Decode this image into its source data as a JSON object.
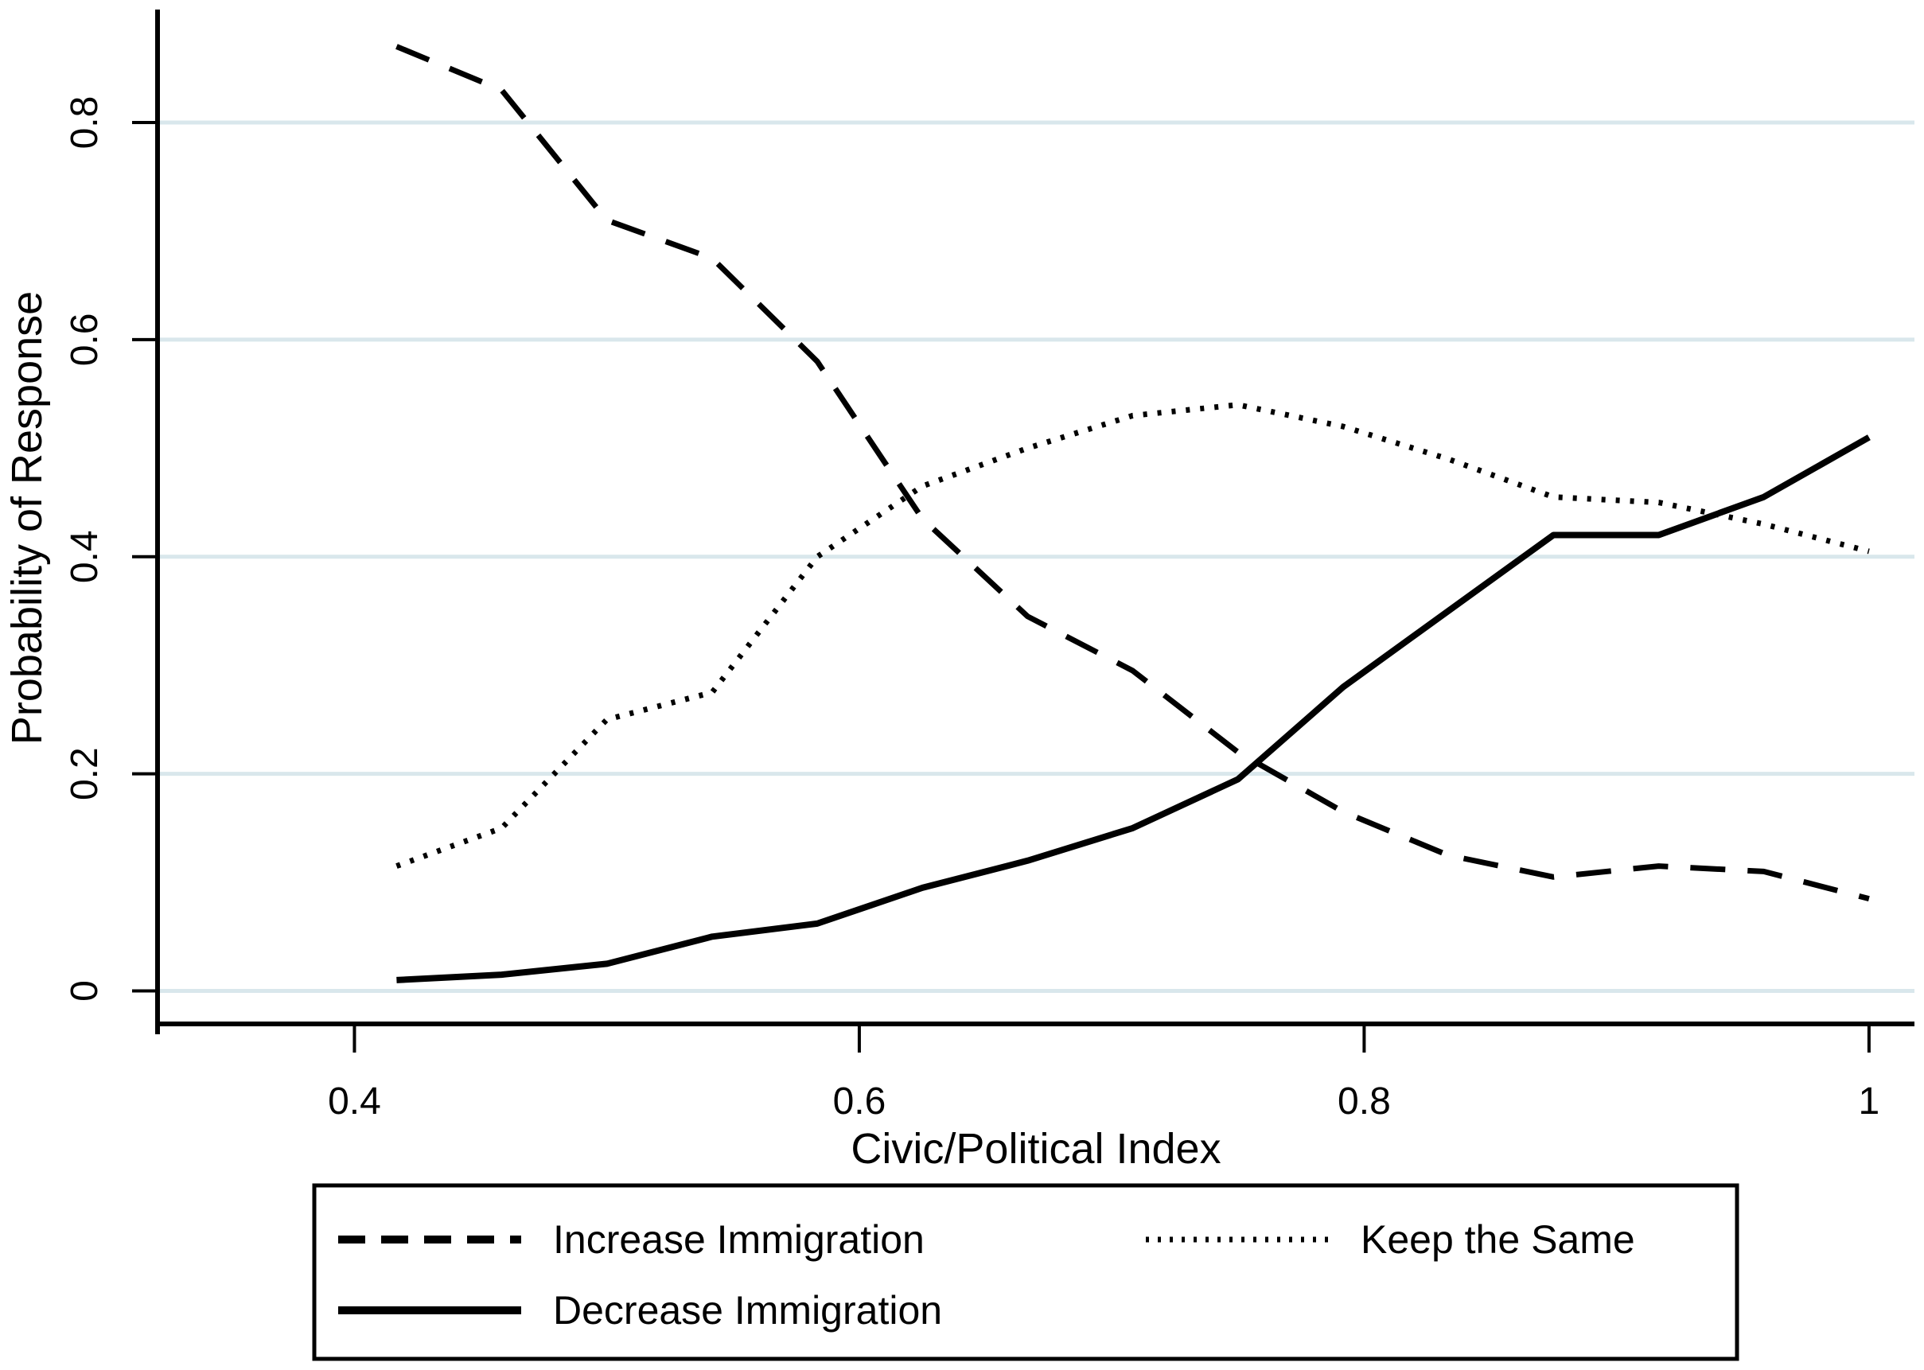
{
  "chart_data": {
    "type": "line",
    "title": "",
    "xlabel": "Civic/Political Index",
    "ylabel": "Probability of Response",
    "x": [
      0.4167,
      0.4583,
      0.5,
      0.5417,
      0.5833,
      0.625,
      0.6667,
      0.7083,
      0.75,
      0.7917,
      0.8333,
      0.875,
      0.9167,
      0.9583,
      1.0
    ],
    "series": [
      {
        "name": "Increase Immigration",
        "style": "dashed",
        "values": [
          0.87,
          0.83,
          0.71,
          0.675,
          0.58,
          0.435,
          0.345,
          0.295,
          0.22,
          0.165,
          0.125,
          0.105,
          0.115,
          0.11,
          0.085
        ]
      },
      {
        "name": "Keep the Same",
        "style": "dotted",
        "values": [
          0.115,
          0.15,
          0.25,
          0.275,
          0.4,
          0.465,
          0.5,
          0.53,
          0.54,
          0.52,
          0.49,
          0.455,
          0.45,
          0.43,
          0.405
        ]
      },
      {
        "name": "Decrease Immigration",
        "style": "solid",
        "values": [
          0.01,
          0.015,
          0.025,
          0.05,
          0.062,
          0.095,
          0.12,
          0.15,
          0.195,
          0.28,
          0.35,
          0.42,
          0.42,
          0.455,
          0.51
        ]
      }
    ],
    "x_ticks": {
      "values": [
        0.4,
        0.6,
        0.8,
        1.0
      ],
      "labels": [
        "0.4",
        "0.6",
        "0.8",
        "1"
      ]
    },
    "y_ticks": {
      "values": [
        0,
        0.2,
        0.4,
        0.6,
        0.8
      ],
      "labels": [
        "0",
        "0.2",
        "0.4",
        "0.6",
        "0.8"
      ]
    },
    "xlim": [
      0.322,
      1.018
    ],
    "ylim": [
      -0.0304,
      0.9019
    ],
    "grid": "horizontal",
    "legend_position": "bottom",
    "legend": {
      "rows": 2,
      "columns": 2,
      "items": [
        {
          "label": "Increase Immigration",
          "style": "dashed",
          "row": 0,
          "col": 0
        },
        {
          "label": "Keep the Same",
          "style": "dotted",
          "row": 0,
          "col": 1
        },
        {
          "label": "Decrease Immigration",
          "style": "solid",
          "row": 1,
          "col": 0
        }
      ]
    },
    "colors": {
      "line": "#000000",
      "grid": "#d9e7ec",
      "axis": "#000000",
      "text": "#000000",
      "background": "#ffffff"
    }
  }
}
